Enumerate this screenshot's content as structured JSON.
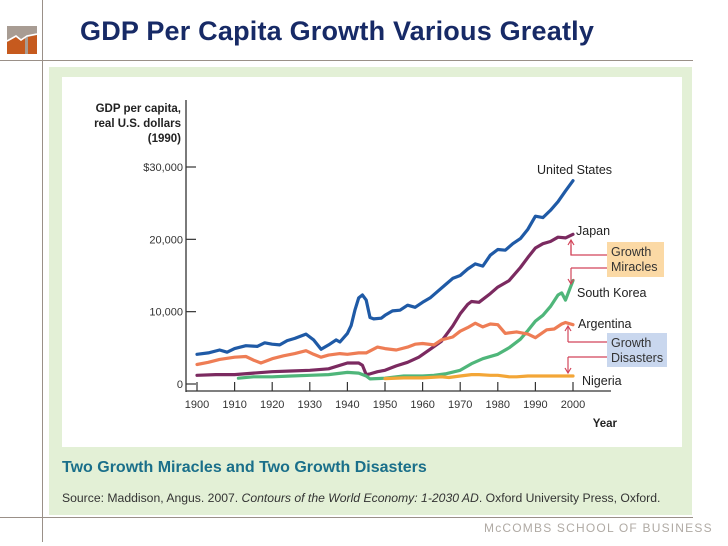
{
  "slide": {
    "title": "GDP Per Capita Growth Various Greatly",
    "caption": "Two Growth Miracles and Two Growth Disasters",
    "source_prefix": "Source: Maddison, Angus. 2007. ",
    "source_title": "Contours of the World Economy: 1-2030 AD",
    "source_suffix": ". Oxford University Press, Oxford.",
    "footer": "McCOMBS SCHOOL OF BUSINESS",
    "logo": "mccombs-logo-icon"
  },
  "chart_data": {
    "type": "line",
    "title": "Two Growth Miracles and Two Growth Disasters",
    "xlabel": "Year",
    "ylabel_lines": [
      "GDP per capita,",
      "real U.S. dollars",
      "(1990)"
    ],
    "xlim": [
      1900,
      2000
    ],
    "ylim": [
      0,
      30000
    ],
    "x_ticks": [
      1900,
      1910,
      1920,
      1930,
      1940,
      1950,
      1960,
      1970,
      1980,
      1990,
      2000
    ],
    "x_tick_labels": [
      "1900",
      "1910",
      "1920",
      "1930",
      "1940",
      "1950",
      "1960",
      "1970",
      "1980",
      "1990",
      "2000"
    ],
    "y_ticks": [
      0,
      10000,
      20000,
      30000
    ],
    "y_tick_labels": [
      "0",
      "10,000",
      "20,000",
      "$30,000"
    ],
    "grid": false,
    "legend": "inline-right",
    "series": [
      {
        "name": "United States",
        "color": "#1f5aa6",
        "x": [
          1900,
          1903,
          1906,
          1908,
          1910,
          1913,
          1916,
          1918,
          1920,
          1922,
          1924,
          1926,
          1929,
          1931,
          1933,
          1935,
          1937,
          1938,
          1940,
          1941,
          1942,
          1943,
          1944,
          1945,
          1946,
          1947,
          1949,
          1950,
          1952,
          1954,
          1956,
          1958,
          1960,
          1962,
          1964,
          1966,
          1968,
          1970,
          1972,
          1974,
          1976,
          1978,
          1980,
          1982,
          1984,
          1986,
          1988,
          1990,
          1992,
          1994,
          1996,
          1998,
          2000
        ],
        "values": [
          4100,
          4300,
          4700,
          4400,
          4900,
          5300,
          5200,
          5700,
          5500,
          5400,
          6000,
          6300,
          6900,
          6100,
          4800,
          5400,
          6100,
          5800,
          7000,
          8100,
          10200,
          11900,
          12300,
          11600,
          9200,
          9000,
          9100,
          9500,
          10100,
          10200,
          10900,
          10600,
          11300,
          11900,
          12800,
          13700,
          14600,
          15000,
          15900,
          16600,
          16300,
          17800,
          18600,
          18500,
          19400,
          20100,
          21400,
          23200,
          23000,
          24000,
          25200,
          26700,
          28100
        ]
      },
      {
        "name": "Japan",
        "color": "#7b2a60",
        "x": [
          1900,
          1905,
          1910,
          1915,
          1920,
          1925,
          1930,
          1935,
          1940,
          1943,
          1944,
          1945,
          1946,
          1948,
          1950,
          1953,
          1956,
          1959,
          1962,
          1965,
          1968,
          1970,
          1972,
          1973,
          1975,
          1978,
          1980,
          1983,
          1986,
          1988,
          1990,
          1992,
          1994,
          1996,
          1998,
          2000
        ],
        "values": [
          1200,
          1300,
          1300,
          1500,
          1700,
          1800,
          1900,
          2100,
          2900,
          2900,
          2600,
          1300,
          1400,
          1700,
          1900,
          2500,
          3000,
          3700,
          4800,
          5900,
          8000,
          9700,
          11000,
          11400,
          11300,
          12500,
          13400,
          14300,
          16100,
          17500,
          18800,
          19400,
          19700,
          20300,
          20200,
          20700
        ]
      },
      {
        "name": "South Korea",
        "color": "#4fb67a",
        "x": [
          1911,
          1915,
          1920,
          1925,
          1930,
          1935,
          1940,
          1943,
          1945,
          1946,
          1950,
          1953,
          1955,
          1960,
          1963,
          1966,
          1970,
          1973,
          1976,
          1980,
          1983,
          1986,
          1988,
          1990,
          1992,
          1994,
          1996,
          1997,
          1998,
          2000
        ],
        "values": [
          800,
          1000,
          1000,
          1100,
          1200,
          1300,
          1600,
          1500,
          1100,
          700,
          800,
          1000,
          1100,
          1100,
          1200,
          1400,
          1900,
          2800,
          3500,
          4100,
          5000,
          6200,
          7400,
          8700,
          9500,
          10700,
          12300,
          12600,
          11600,
          14300
        ]
      },
      {
        "name": "Argentina",
        "color": "#ee7d55",
        "x": [
          1900,
          1903,
          1906,
          1910,
          1913,
          1915,
          1917,
          1920,
          1923,
          1926,
          1929,
          1931,
          1933,
          1935,
          1938,
          1940,
          1943,
          1945,
          1948,
          1950,
          1953,
          1956,
          1958,
          1960,
          1963,
          1965,
          1968,
          1970,
          1972,
          1974,
          1976,
          1978,
          1980,
          1982,
          1985,
          1988,
          1990,
          1993,
          1995,
          1997,
          1998,
          2000
        ],
        "values": [
          2700,
          3000,
          3400,
          3700,
          3800,
          3300,
          2900,
          3500,
          3900,
          4200,
          4600,
          4100,
          3700,
          4000,
          4200,
          4100,
          4300,
          4300,
          5100,
          4900,
          4700,
          5100,
          5500,
          5600,
          5400,
          6100,
          6500,
          7300,
          7800,
          8400,
          7900,
          8300,
          8200,
          7000,
          7200,
          6900,
          6400,
          7500,
          7600,
          8300,
          8500,
          8200
        ]
      },
      {
        "name": "Nigeria",
        "color": "#f3a637",
        "x": [
          1950,
          1955,
          1960,
          1965,
          1967,
          1970,
          1973,
          1975,
          1978,
          1980,
          1983,
          1985,
          1988,
          1990,
          1995,
          2000
        ],
        "values": [
          750,
          850,
          850,
          1000,
          900,
          1100,
          1300,
          1300,
          1200,
          1200,
          1000,
          1000,
          1100,
          1100,
          1100,
          1100
        ]
      }
    ],
    "annotations": [
      {
        "label_lines": [
          "Growth",
          "Miracles"
        ],
        "background": "#fbd9a5",
        "targets": [
          "Japan",
          "South Korea"
        ]
      },
      {
        "label_lines": [
          "Growth",
          "Disasters"
        ],
        "background": "#c9d7ee",
        "targets": [
          "Argentina",
          "Nigeria"
        ]
      }
    ]
  }
}
